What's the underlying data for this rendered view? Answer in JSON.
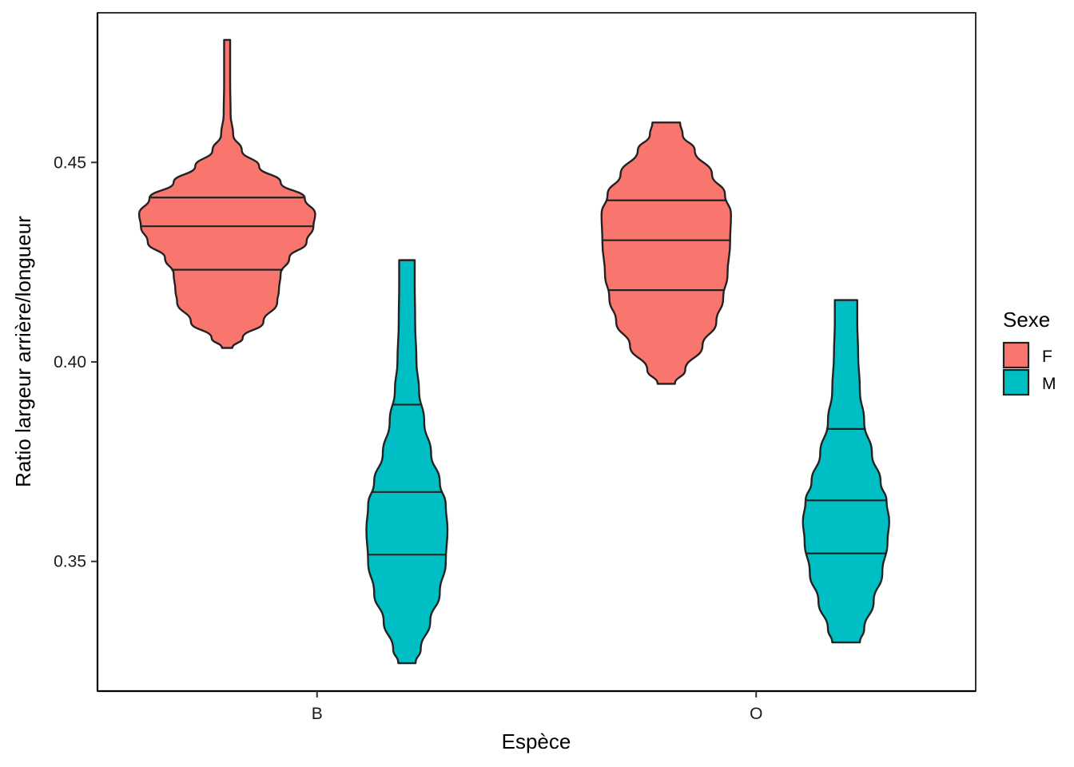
{
  "chart_data": {
    "type": "violin",
    "xlabel": "Espèce",
    "ylabel": "Ratio largeur arrière/longueur",
    "categories": [
      "B",
      "O"
    ],
    "ylim": [
      0.3175,
      0.4875
    ],
    "yticks": [
      0.35,
      0.4,
      0.45
    ],
    "ytick_labels": [
      "0.35",
      "0.40",
      "0.45"
    ],
    "grid": false,
    "legend": {
      "title": "Sexe",
      "position": "right",
      "entries": [
        {
          "label": "F",
          "color": "#F8766D"
        },
        {
          "label": "M",
          "color": "#00BFC4"
        }
      ]
    },
    "series": [
      {
        "name": "F",
        "color": "#F8766D",
        "violins": [
          {
            "category": "B",
            "min": 0.4035,
            "max": 0.4807,
            "quantiles": [
              0.4231,
              0.434,
              0.4412
            ],
            "profile": [
              [
                0.4035,
                0.06
              ],
              [
                0.406,
                0.18
              ],
              [
                0.41,
                0.42
              ],
              [
                0.415,
                0.58
              ],
              [
                0.418,
                0.6
              ],
              [
                0.422,
                0.62
              ],
              [
                0.426,
                0.72
              ],
              [
                0.43,
                0.92
              ],
              [
                0.434,
                1.0
              ],
              [
                0.437,
                1.02
              ],
              [
                0.441,
                0.9
              ],
              [
                0.445,
                0.62
              ],
              [
                0.449,
                0.37
              ],
              [
                0.453,
                0.17
              ],
              [
                0.457,
                0.07
              ],
              [
                0.462,
                0.04
              ],
              [
                0.47,
                0.035
              ],
              [
                0.4807,
                0.035
              ]
            ]
          },
          {
            "category": "O",
            "min": 0.3945,
            "max": 0.46,
            "quantiles": [
              0.418,
              0.4305,
              0.4405
            ],
            "profile": [
              [
                0.3945,
                0.1
              ],
              [
                0.398,
                0.22
              ],
              [
                0.404,
                0.42
              ],
              [
                0.41,
                0.58
              ],
              [
                0.416,
                0.66
              ],
              [
                0.422,
                0.71
              ],
              [
                0.43,
                0.74
              ],
              [
                0.437,
                0.75
              ],
              [
                0.442,
                0.68
              ],
              [
                0.447,
                0.53
              ],
              [
                0.453,
                0.33
              ],
              [
                0.457,
                0.19
              ],
              [
                0.46,
                0.16
              ]
            ]
          }
        ]
      },
      {
        "name": "M",
        "color": "#00BFC4",
        "violins": [
          {
            "category": "B",
            "min": 0.3245,
            "max": 0.4255,
            "quantiles": [
              0.3517,
              0.3674,
              0.3893
            ],
            "profile": [
              [
                0.3245,
                0.1
              ],
              [
                0.328,
                0.16
              ],
              [
                0.335,
                0.27
              ],
              [
                0.342,
                0.38
              ],
              [
                0.35,
                0.45
              ],
              [
                0.358,
                0.47
              ],
              [
                0.364,
                0.45
              ],
              [
                0.37,
                0.38
              ],
              [
                0.377,
                0.28
              ],
              [
                0.385,
                0.2
              ],
              [
                0.393,
                0.14
              ],
              [
                0.4,
                0.11
              ],
              [
                0.41,
                0.095
              ],
              [
                0.42,
                0.09
              ],
              [
                0.4255,
                0.09
              ]
            ]
          },
          {
            "category": "O",
            "min": 0.3297,
            "max": 0.4155,
            "quantiles": [
              0.352,
              0.3653,
              0.3832
            ],
            "profile": [
              [
                0.3297,
                0.16
              ],
              [
                0.333,
                0.21
              ],
              [
                0.34,
                0.32
              ],
              [
                0.347,
                0.42
              ],
              [
                0.355,
                0.48
              ],
              [
                0.36,
                0.5
              ],
              [
                0.365,
                0.47
              ],
              [
                0.37,
                0.4
              ],
              [
                0.377,
                0.3
              ],
              [
                0.385,
                0.21
              ],
              [
                0.393,
                0.16
              ],
              [
                0.402,
                0.14
              ],
              [
                0.41,
                0.13
              ],
              [
                0.4155,
                0.13
              ]
            ]
          }
        ]
      }
    ]
  }
}
